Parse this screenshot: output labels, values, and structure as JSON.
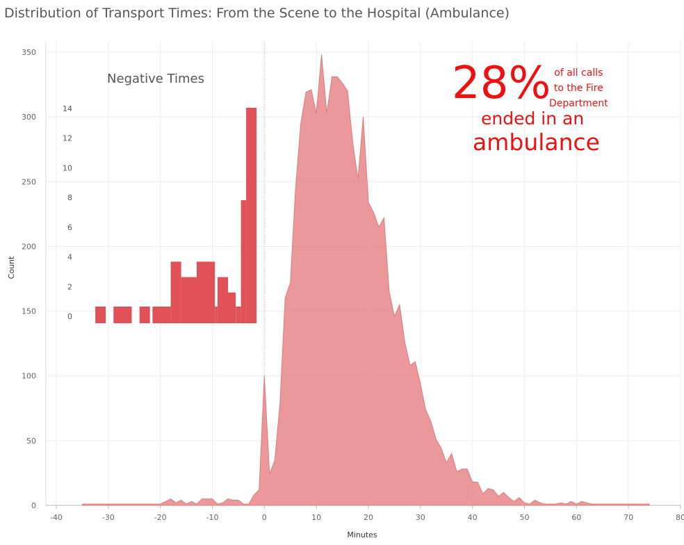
{
  "chart_data": [
    {
      "type": "area",
      "title": "Distribution of Transport Times: From the Scene to the Hospital (Ambulance)",
      "xlabel": "Minutes",
      "ylabel": "Count",
      "xlim": [
        -42,
        80
      ],
      "ylim": [
        0,
        350
      ],
      "xticks": [
        -40,
        -30,
        -20,
        -10,
        0,
        10,
        20,
        30,
        40,
        50,
        60,
        70,
        80
      ],
      "yticks": [
        0,
        50,
        100,
        150,
        200,
        250,
        300,
        350
      ],
      "grid": true,
      "color": "#e88a8c",
      "series": [
        {
          "x": [
            -35,
            -20,
            -19,
            -18,
            -17,
            -16,
            -15,
            -14,
            -13,
            -12,
            -11,
            -10,
            -9,
            -8,
            -7,
            -6,
            -5,
            -4,
            -3,
            -2,
            -1,
            0,
            1,
            2,
            3,
            4,
            5,
            6,
            7,
            8,
            9,
            10,
            11,
            12,
            13,
            14,
            15,
            16,
            17,
            18,
            19,
            20,
            21,
            22,
            23,
            24,
            25,
            26,
            27,
            28,
            29,
            30,
            31,
            32,
            33,
            34,
            35,
            36,
            37,
            38,
            39,
            40,
            41,
            42,
            43,
            44,
            45,
            46,
            47,
            48,
            49,
            50,
            51,
            52,
            53,
            54,
            55,
            56,
            57,
            58,
            59,
            60,
            61,
            62,
            63,
            64,
            65,
            74
          ],
          "y": [
            1,
            1,
            3,
            5,
            2,
            4,
            1,
            3,
            1,
            5,
            5,
            5,
            1,
            2,
            5,
            4,
            4,
            1,
            1,
            8,
            12,
            100,
            24,
            35,
            79,
            160,
            172,
            245,
            295,
            319,
            321,
            303,
            348,
            303,
            331,
            331,
            326,
            320,
            280,
            252,
            300,
            234,
            226,
            215,
            222,
            165,
            146,
            155,
            126,
            108,
            111,
            94,
            74,
            65,
            51,
            44,
            33,
            40,
            26,
            28,
            28,
            18,
            18,
            9,
            13,
            12,
            7,
            10,
            6,
            3,
            6,
            2,
            1,
            4,
            2,
            1,
            1,
            1,
            2,
            1,
            3,
            1,
            3,
            2,
            1,
            1,
            1,
            1
          ]
        }
      ]
    },
    {
      "type": "bar",
      "title": "Negative Times",
      "yticks": [
        0,
        2,
        4,
        6,
        8,
        10,
        12,
        14
      ],
      "ylim": [
        0,
        14
      ],
      "color": "#e05257",
      "bars": [
        {
          "x0": -32.5,
          "x1": -30.5,
          "value": 1
        },
        {
          "x0": -29.0,
          "x1": -25.5,
          "value": 1
        },
        {
          "x0": -24.0,
          "x1": -22.0,
          "value": 1
        },
        {
          "x0": -21.5,
          "x1": -18.0,
          "value": 1
        },
        {
          "x0": -18.0,
          "x1": -16.0,
          "value": 4
        },
        {
          "x0": -16.0,
          "x1": -13.0,
          "value": 3
        },
        {
          "x0": -13.0,
          "x1": -9.5,
          "value": 4
        },
        {
          "x0": -9.5,
          "x1": -9.0,
          "value": 1
        },
        {
          "x0": -9.0,
          "x1": -7.0,
          "value": 3
        },
        {
          "x0": -7.0,
          "x1": -5.5,
          "value": 2
        },
        {
          "x0": -5.5,
          "x1": -4.5,
          "value": 1
        },
        {
          "x0": -4.5,
          "x1": -3.5,
          "value": 8
        },
        {
          "x0": -3.5,
          "x1": -1.5,
          "value": 14
        }
      ]
    }
  ],
  "annotations": {
    "percent": "28%",
    "line1": "of all calls",
    "line2": "to the Fire",
    "line3": "Department",
    "line4": "ended in an",
    "line5": "ambulance"
  }
}
